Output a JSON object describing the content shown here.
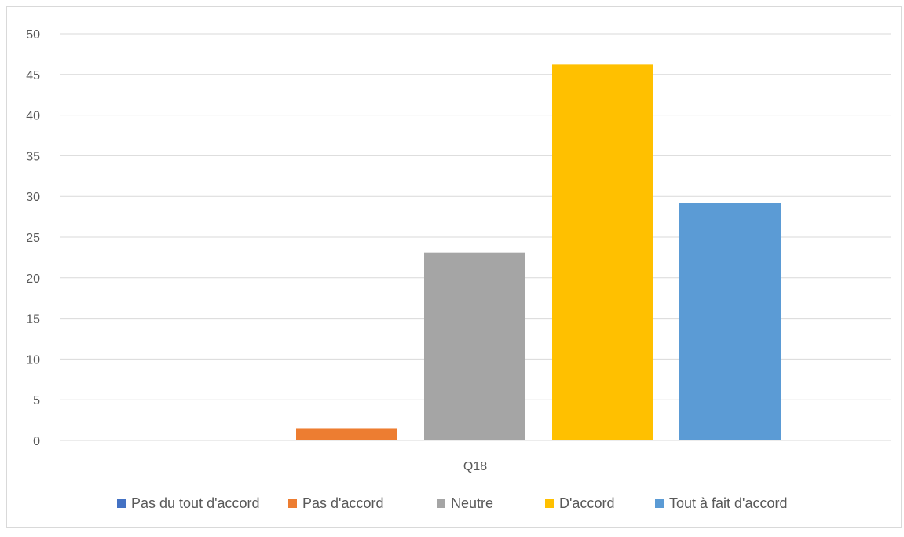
{
  "chart_data": {
    "type": "bar",
    "categories": [
      "Q18"
    ],
    "series": [
      {
        "name": "Pas du tout d'accord",
        "color": "#4472c4",
        "values": [
          0
        ]
      },
      {
        "name": "Pas d'accord",
        "color": "#ed7d31",
        "values": [
          1.5
        ]
      },
      {
        "name": "Neutre",
        "color": "#a5a5a5",
        "values": [
          23.1
        ]
      },
      {
        "name": "D'accord",
        "color": "#ffc000",
        "values": [
          46.2
        ]
      },
      {
        "name": "Tout à fait d'accord",
        "color": "#5b9bd5",
        "values": [
          29.2
        ]
      }
    ],
    "yticks": [
      "0",
      "5",
      "10",
      "15",
      "20",
      "25",
      "30",
      "35",
      "40",
      "45",
      "50"
    ],
    "ylim": [
      0,
      50
    ],
    "grid": true,
    "legend_position": "bottom",
    "gridline_color": "#d9d9d9",
    "axis_label_color": "#595959"
  }
}
